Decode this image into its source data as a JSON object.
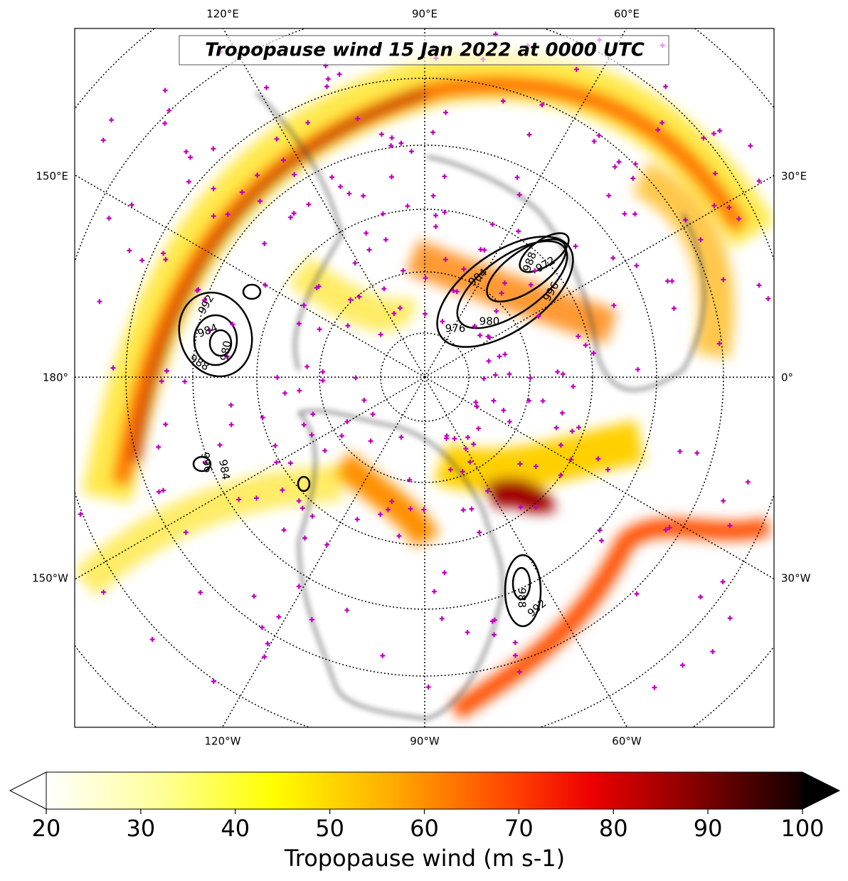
{
  "map": {
    "title": "Tropopause wind 15 Jan 2022 at 0000 UTC",
    "lon_labels": {
      "top": [
        "120°E",
        "90°E",
        "60°E"
      ],
      "left": [
        "150°E",
        "180°",
        "150°W"
      ],
      "right": [
        "30°E",
        "0°",
        "30°W"
      ],
      "bottom": [
        "120°W",
        "90°W",
        "60°W"
      ]
    },
    "contour_labels": [
      "992",
      "984",
      "988",
      "980",
      "984",
      "976",
      "980",
      "972",
      "988",
      "996",
      "996",
      "984",
      "988",
      "992"
    ]
  },
  "colorbar": {
    "lim": [
      20,
      100
    ],
    "ticks": [
      20,
      30,
      40,
      50,
      60,
      70,
      80,
      90,
      100
    ],
    "label": "Tropopause wind (m s-1)"
  }
}
